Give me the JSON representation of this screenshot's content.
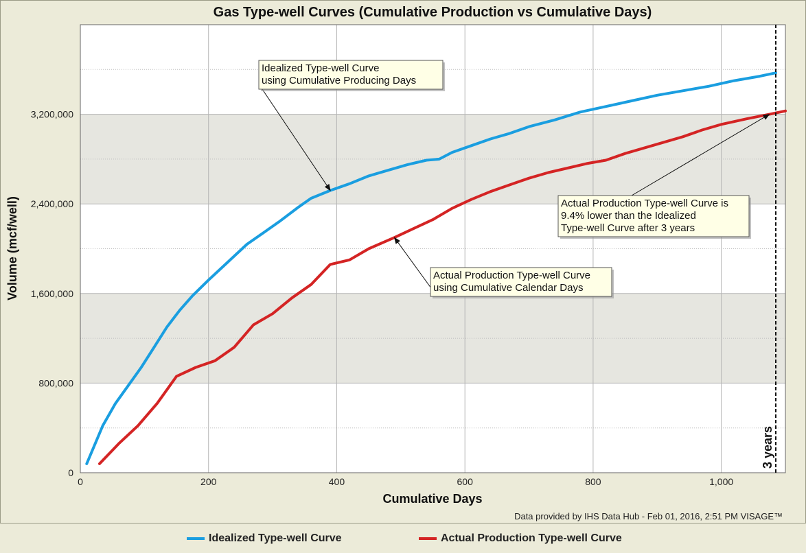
{
  "chart_data": {
    "type": "line",
    "title": "Gas Type-well Curves (Cumulative Production vs Cumulative Days)",
    "xlabel": "Cumulative Days",
    "ylabel": "Volume (mcf/well)",
    "xlim": [
      0,
      1100
    ],
    "ylim": [
      0,
      4000000
    ],
    "x_ticks": [
      0,
      200,
      400,
      600,
      800,
      1000
    ],
    "x_tick_labels": [
      "0",
      "200",
      "400",
      "600",
      "800",
      "1,000"
    ],
    "y_ticks": [
      0,
      800000,
      1600000,
      2400000,
      3200000
    ],
    "y_tick_labels": [
      "0",
      "800,000",
      "1,600,000",
      "2,400,000",
      "3,200,000"
    ],
    "grid": true,
    "legend_position": "bottom",
    "series": [
      {
        "name": "Idealized Type-well Curve",
        "color": "#1a9ee0",
        "x": [
          10,
          35,
          55,
          75,
          95,
          115,
          135,
          155,
          175,
          200,
          230,
          260,
          290,
          310,
          340,
          360,
          390,
          420,
          450,
          480,
          510,
          540,
          560,
          580,
          610,
          640,
          670,
          700,
          740,
          780,
          820,
          860,
          900,
          940,
          980,
          1020,
          1060,
          1085
        ],
        "y": [
          80000,
          420000,
          620000,
          780000,
          940000,
          1120000,
          1300000,
          1450000,
          1580000,
          1720000,
          1880000,
          2040000,
          2160000,
          2240000,
          2370000,
          2450000,
          2520000,
          2580000,
          2650000,
          2700000,
          2750000,
          2790000,
          2800000,
          2860000,
          2920000,
          2980000,
          3030000,
          3090000,
          3150000,
          3220000,
          3270000,
          3320000,
          3370000,
          3410000,
          3450000,
          3500000,
          3540000,
          3570000
        ]
      },
      {
        "name": "Actual Production Type-well Curve",
        "color": "#d42424",
        "x": [
          30,
          60,
          90,
          120,
          150,
          180,
          210,
          240,
          270,
          300,
          330,
          360,
          390,
          420,
          450,
          490,
          520,
          550,
          580,
          610,
          640,
          670,
          700,
          730,
          760,
          790,
          820,
          850,
          880,
          910,
          940,
          970,
          1000,
          1040,
          1075,
          1100
        ],
        "y": [
          80000,
          260000,
          420000,
          620000,
          860000,
          940000,
          1000000,
          1120000,
          1320000,
          1420000,
          1560000,
          1680000,
          1860000,
          1900000,
          2000000,
          2100000,
          2180000,
          2260000,
          2360000,
          2440000,
          2510000,
          2570000,
          2630000,
          2680000,
          2720000,
          2760000,
          2790000,
          2850000,
          2900000,
          2950000,
          3000000,
          3060000,
          3110000,
          3160000,
          3200000,
          3230000
        ]
      }
    ],
    "annotations": [
      {
        "text_lines": [
          "Idealized Type-well Curve",
          "using Cumulative Producing Days"
        ],
        "target": [
          390,
          2520000
        ]
      },
      {
        "text_lines": [
          "Actual Production Type-well Curve",
          "using Cumulative Calendar Days"
        ],
        "target": [
          490,
          2100000
        ]
      },
      {
        "text_lines": [
          "Actual Production Type-well Curve is",
          "9.4% lower than the Idealized",
          "Type-well Curve after 3 years"
        ],
        "target": [
          1075,
          3200000
        ]
      }
    ],
    "marker": {
      "x": 1085,
      "label": "3 years"
    }
  },
  "credit": "Data provided by IHS Data Hub - Feb 01, 2016, 2:51 PM  VISAGE™"
}
